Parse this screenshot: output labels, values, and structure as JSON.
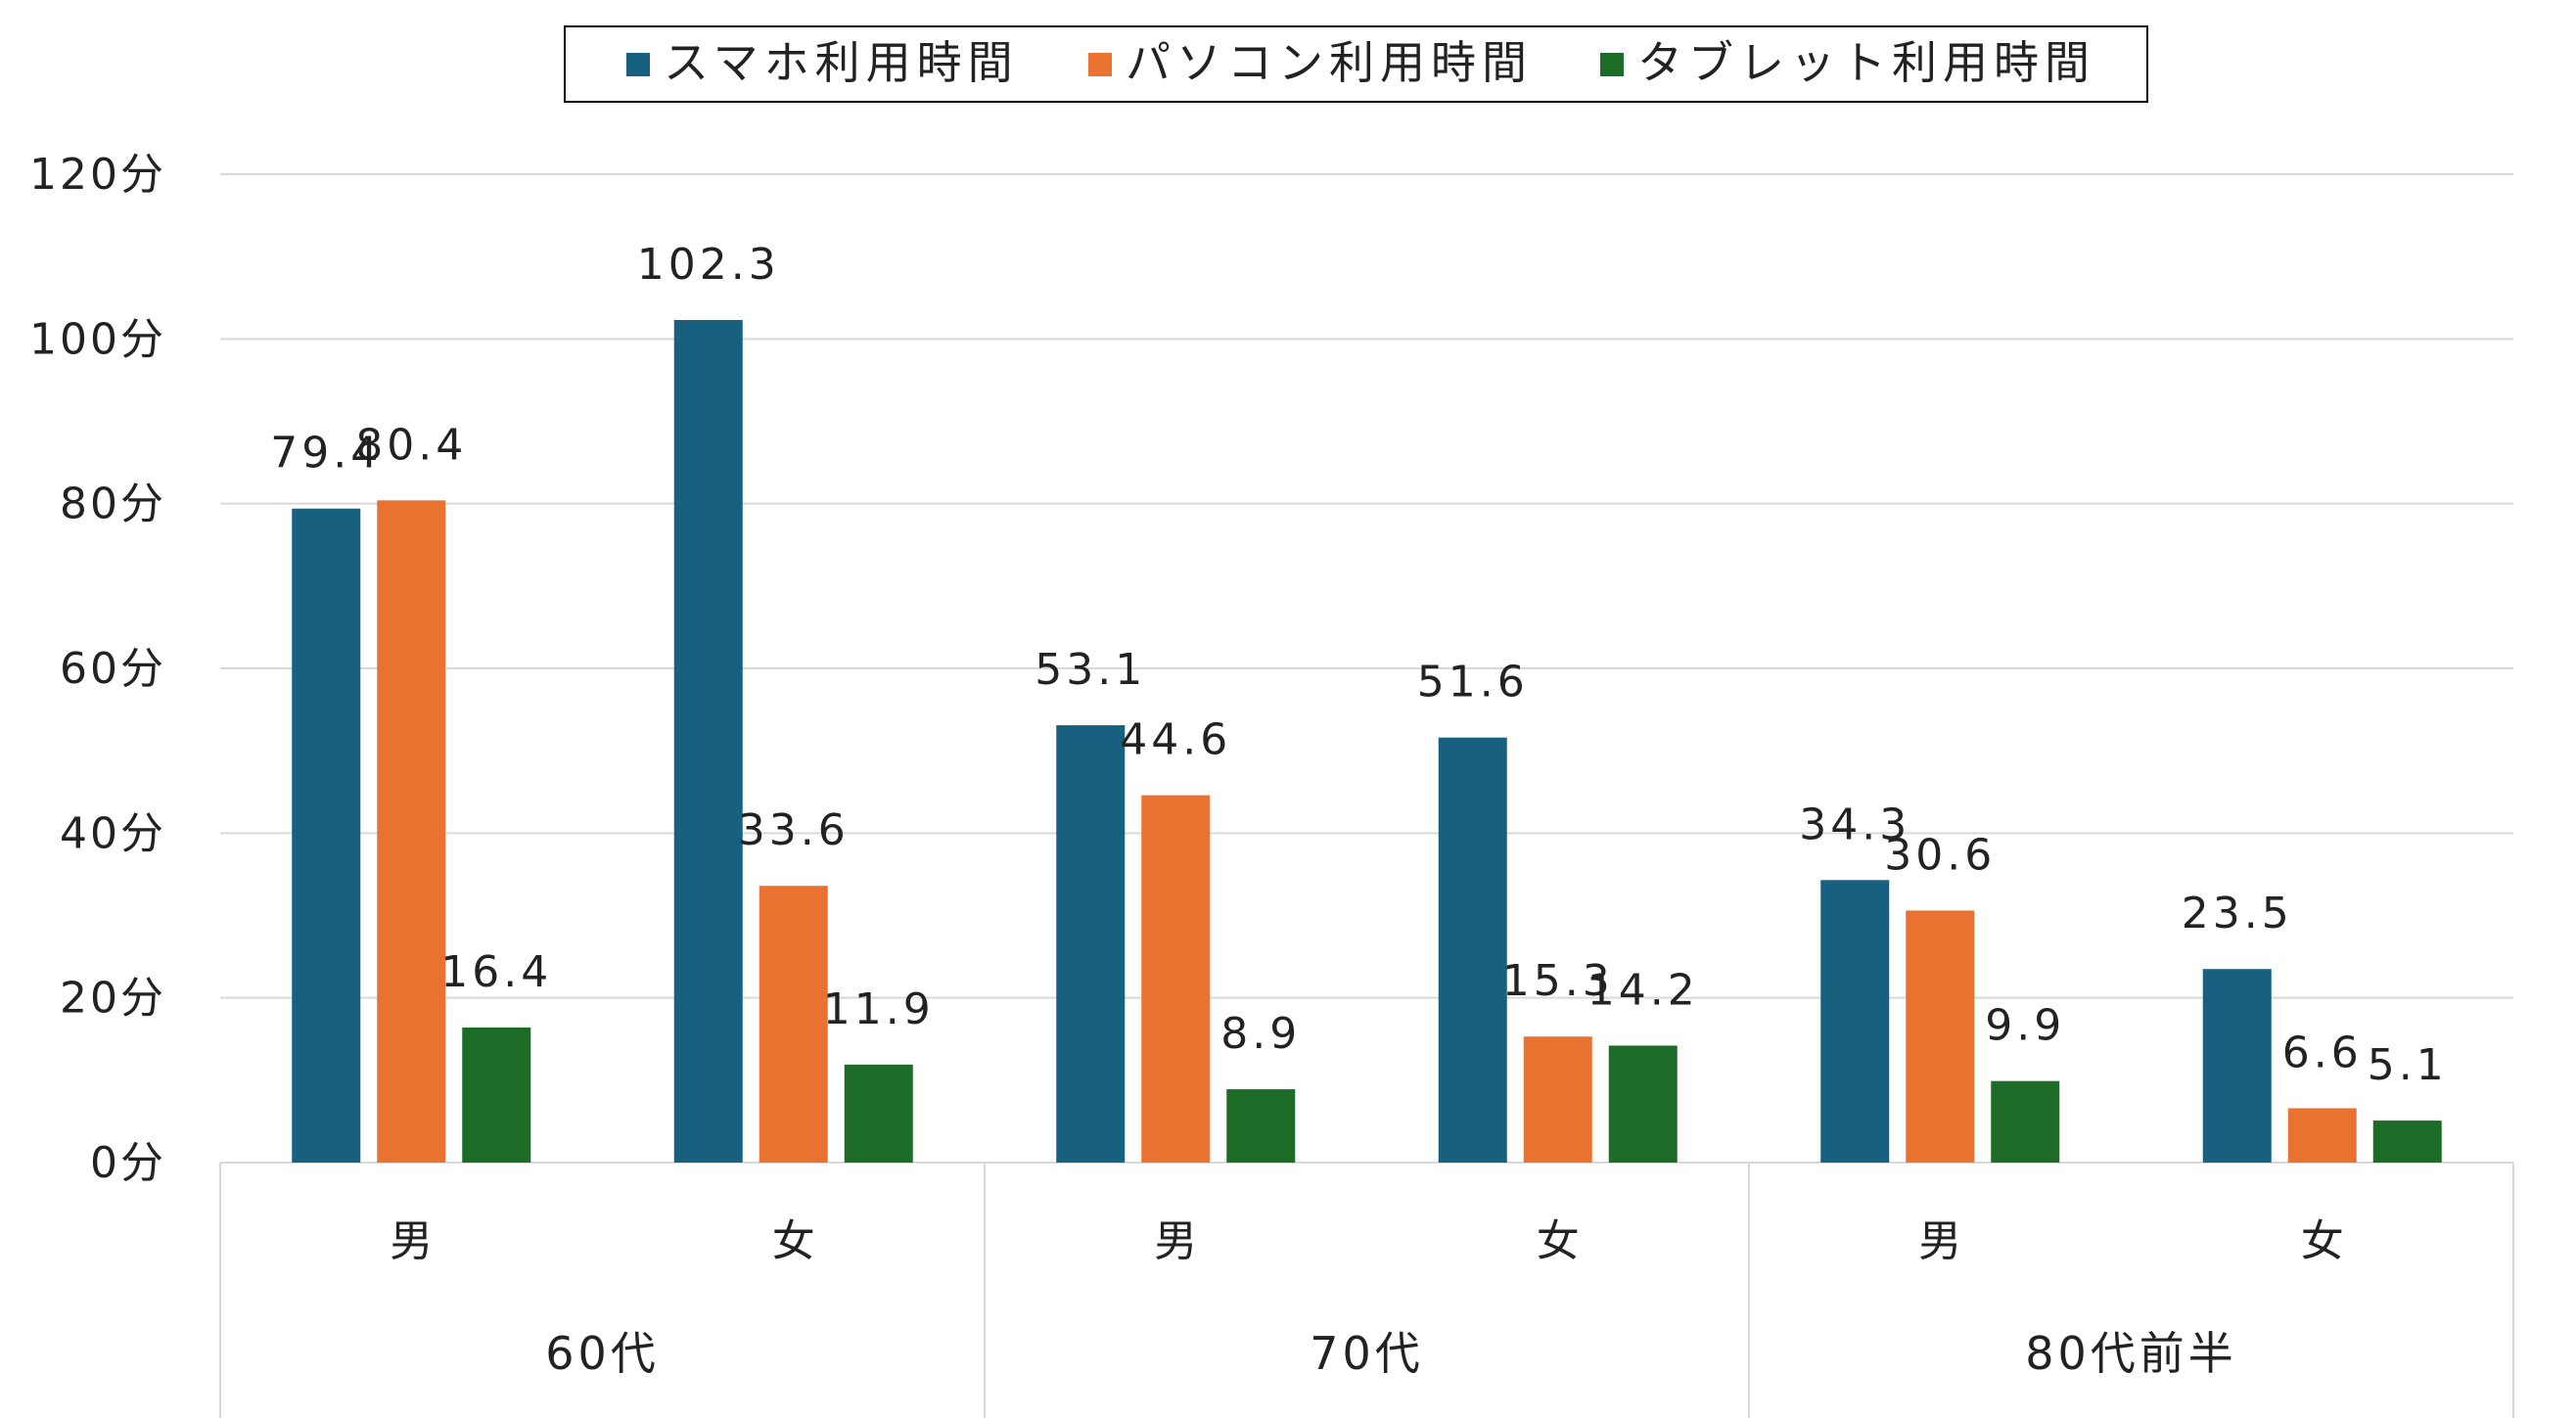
{
  "chart_data": {
    "type": "bar",
    "unit_suffix": "分",
    "ylim": [
      0,
      120
    ],
    "yticks": [
      0,
      20,
      40,
      60,
      80,
      100,
      120
    ],
    "grid": true,
    "legend_position": "top-center",
    "groups": [
      {
        "label": "60代",
        "categories": [
          "男",
          "女"
        ]
      },
      {
        "label": "70代",
        "categories": [
          "男",
          "女"
        ]
      },
      {
        "label": "80代前半",
        "categories": [
          "男",
          "女"
        ]
      }
    ],
    "categories": [
      "60代 男",
      "60代 女",
      "70代 男",
      "70代 女",
      "80代前半 男",
      "80代前半 女"
    ],
    "series": [
      {
        "name": "スマホ利用時間",
        "color": "#17607f",
        "values": [
          79.4,
          102.3,
          53.1,
          51.6,
          34.3,
          23.5
        ]
      },
      {
        "name": "パソコン利用時間",
        "color": "#e97231",
        "values": [
          80.4,
          33.6,
          44.6,
          15.3,
          30.6,
          6.6
        ]
      },
      {
        "name": "タブレット利用時間",
        "color": "#1c6b26",
        "values": [
          16.4,
          11.9,
          8.9,
          14.2,
          9.9,
          5.1
        ]
      }
    ]
  }
}
